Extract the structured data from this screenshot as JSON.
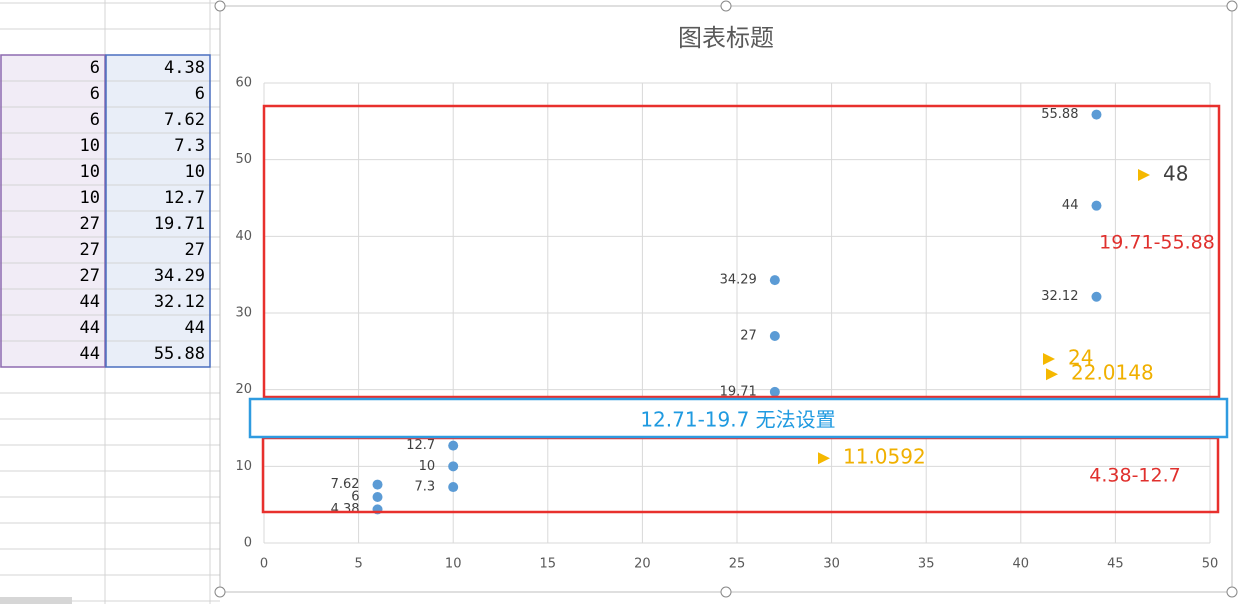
{
  "chart_data": {
    "type": "scatter",
    "title": "图表标题",
    "x": [
      6,
      6,
      6,
      10,
      10,
      10,
      27,
      27,
      27,
      44,
      44,
      44
    ],
    "series": [
      {
        "values": [
          4.38,
          6,
          7.62,
          7.3,
          10,
          12.7,
          19.71,
          27,
          34.29,
          32.12,
          44,
          55.88
        ],
        "color": "#5b9bd5"
      }
    ],
    "xlim": [
      0,
      50
    ],
    "xticks": [
      0,
      5,
      10,
      15,
      20,
      25,
      30,
      35,
      40,
      45,
      50
    ],
    "ylim": [
      0,
      60
    ],
    "yticks": [
      0,
      10,
      20,
      30,
      40,
      50,
      60
    ],
    "grid": true,
    "annotations": [
      48,
      24,
      22.0148,
      11.0592
    ],
    "annotation_colors": [
      "#404040",
      "#f0b000",
      "#f0b000",
      "#f0b000"
    ],
    "ranges": [
      "19.71-55.88",
      "4.38-12.7"
    ],
    "note": "12.71-19.7 无法设置"
  }
}
